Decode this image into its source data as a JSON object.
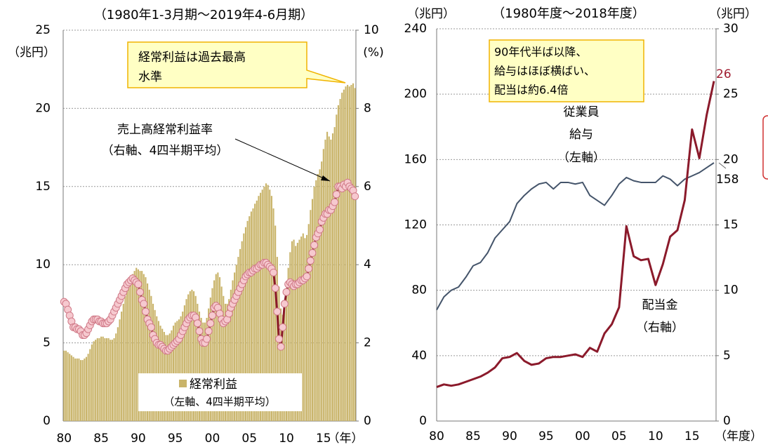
{
  "chart_data": [
    {
      "type": "combo",
      "title": "（1980年1-3月期～2019年4-6月期）",
      "y_unit": "（兆円）",
      "y2_unit": "(%)",
      "x_unit": "（年）",
      "callout": [
        "経常利益は過去最高",
        "水準"
      ],
      "categories": [
        "80",
        null,
        null,
        null,
        null,
        null,
        null,
        null,
        null,
        null,
        null,
        null,
        null,
        null,
        null,
        null,
        null,
        null,
        null,
        null,
        "85",
        null,
        null,
        null,
        null,
        null,
        null,
        null,
        null,
        null,
        null,
        null,
        null,
        null,
        null,
        null,
        null,
        null,
        null,
        null,
        "90",
        null,
        null,
        null,
        null,
        null,
        null,
        null,
        null,
        null,
        null,
        null,
        null,
        null,
        null,
        null,
        null,
        null,
        null,
        null,
        "95",
        null,
        null,
        null,
        null,
        null,
        null,
        null,
        null,
        null,
        null,
        null,
        null,
        null,
        null,
        null,
        null,
        null,
        null,
        null,
        "00",
        null,
        null,
        null,
        null,
        null,
        null,
        null,
        null,
        null,
        null,
        null,
        null,
        null,
        null,
        null,
        null,
        null,
        null,
        null,
        "05",
        null,
        null,
        null,
        null,
        null,
        null,
        null,
        null,
        null,
        null,
        null,
        null,
        null,
        null,
        null,
        null,
        null,
        null,
        null,
        "10",
        null,
        null,
        null,
        null,
        null,
        null,
        null,
        null,
        null,
        null,
        null,
        null,
        null,
        null,
        null,
        null,
        null,
        null,
        null,
        "15",
        null,
        null,
        null,
        null,
        null,
        null,
        null,
        null,
        null,
        null,
        null,
        null,
        null,
        null,
        null,
        null,
        null
      ],
      "ylim": [
        0,
        25
      ],
      "yticks": [
        0,
        5,
        10,
        15,
        20,
        25
      ],
      "y2lim": [
        0,
        10
      ],
      "y2ticks": [
        0,
        2,
        4,
        6,
        8,
        10
      ],
      "grid": true,
      "series": [
        {
          "type": "bar",
          "label": [
            "経常利益",
            "（左軸、4四半期平均）"
          ],
          "color": "#c9b46a",
          "values": [
            4.5,
            4.5,
            4.4,
            4.3,
            4.2,
            4.1,
            4.0,
            4.0,
            4.0,
            3.9,
            3.9,
            4.0,
            4.1,
            4.3,
            4.6,
            4.9,
            5.1,
            5.2,
            5.3,
            5.3,
            5.4,
            5.4,
            5.3,
            5.3,
            5.3,
            5.2,
            5.2,
            5.3,
            5.6,
            6.0,
            6.5,
            7.0,
            7.5,
            8.0,
            8.4,
            8.7,
            9.0,
            9.4,
            9.6,
            9.8,
            9.7,
            9.6,
            9.6,
            9.4,
            9.2,
            8.8,
            8.4,
            8.0,
            7.5,
            7.1,
            6.7,
            6.4,
            6.1,
            5.9,
            5.7,
            5.5,
            5.5,
            5.6,
            5.8,
            6.1,
            6.3,
            6.4,
            6.5,
            6.7,
            7.0,
            7.4,
            7.8,
            8.1,
            8.3,
            8.4,
            8.3,
            8.0,
            7.5,
            7.0,
            6.6,
            6.3,
            6.3,
            6.6,
            7.2,
            7.9,
            8.5,
            9.0,
            9.4,
            9.5,
            9.2,
            8.6,
            8.0,
            7.5,
            7.5,
            7.8,
            8.4,
            9.0,
            9.5,
            10.0,
            10.5,
            11.0,
            11.5,
            12.0,
            12.4,
            12.8,
            13.1,
            13.4,
            13.6,
            13.9,
            14.1,
            14.4,
            14.6,
            14.8,
            15.0,
            15.2,
            15.1,
            14.8,
            14.4,
            13.6,
            12.5,
            10.5,
            8.6,
            7.2,
            6.8,
            7.3,
            8.5,
            9.8,
            10.8,
            11.5,
            11.6,
            11.2,
            11.4,
            11.6,
            11.8,
            12.0,
            11.7,
            11.9,
            12.6,
            13.5,
            14.2,
            15.0,
            15.4,
            15.8,
            16.1,
            16.6,
            17.4,
            18.0,
            18.5,
            18.2,
            18.0,
            18.4,
            18.8,
            19.6,
            20.2,
            20.6,
            21.0,
            21.2,
            21.4,
            21.5,
            21.4,
            21.5,
            21.6,
            21.3
          ]
        },
        {
          "type": "line",
          "axis": "y2",
          "markers": true,
          "label": [
            "売上高経常利益率",
            "（右軸、4四半期平均）"
          ],
          "color": "#8b1a2b",
          "marker_color": "#f6c9cf",
          "values": [
            3.05,
            3.0,
            2.85,
            2.7,
            2.55,
            2.4,
            2.4,
            2.35,
            2.35,
            2.3,
            2.2,
            2.2,
            2.25,
            2.35,
            2.45,
            2.55,
            2.6,
            2.6,
            2.6,
            2.55,
            2.55,
            2.5,
            2.5,
            2.5,
            2.55,
            2.6,
            2.7,
            2.8,
            2.9,
            3.0,
            3.1,
            3.2,
            3.3,
            3.4,
            3.5,
            3.55,
            3.6,
            3.65,
            3.6,
            3.55,
            3.5,
            3.3,
            3.1,
            3.0,
            2.8,
            2.6,
            2.5,
            2.4,
            2.2,
            2.1,
            2.0,
            1.95,
            1.95,
            1.9,
            1.85,
            1.8,
            1.8,
            1.85,
            1.9,
            1.95,
            2.0,
            2.05,
            2.1,
            2.2,
            2.3,
            2.4,
            2.5,
            2.6,
            2.65,
            2.7,
            2.7,
            2.65,
            2.5,
            2.3,
            2.1,
            2.0,
            2.0,
            2.1,
            2.3,
            2.5,
            2.7,
            2.9,
            2.95,
            2.9,
            2.75,
            2.6,
            2.5,
            2.55,
            2.6,
            2.75,
            2.9,
            3.0,
            3.1,
            3.2,
            3.3,
            3.4,
            3.5,
            3.6,
            3.7,
            3.75,
            3.8,
            3.8,
            3.85,
            3.9,
            3.9,
            3.95,
            4.0,
            4.0,
            4.05,
            4.05,
            4.0,
            3.95,
            3.9,
            3.8,
            3.4,
            2.8,
            2.1,
            1.9,
            2.4,
            3.0,
            3.3,
            3.5,
            3.55,
            3.5,
            3.45,
            3.5,
            3.5,
            3.55,
            3.6,
            3.6,
            3.65,
            3.7,
            3.9,
            4.1,
            4.3,
            4.5,
            4.7,
            4.8,
            4.9,
            5.1,
            5.2,
            5.3,
            5.3,
            5.4,
            5.4,
            5.5,
            5.6,
            5.8,
            6.0,
            6.0,
            5.95,
            6.05,
            6.0,
            6.1,
            6.0,
            5.95,
            5.9,
            5.75
          ]
        }
      ]
    },
    {
      "type": "line",
      "title": "（1980年度～2018年度）",
      "y_unit": "（兆円）",
      "y2_unit": "（兆円）",
      "x_unit": "（年度）",
      "callout": [
        "90年代半ば以降、",
        "給与はほぼ横ばい、",
        "配当は約6.4倍"
      ],
      "categories": [
        "80",
        null,
        null,
        null,
        null,
        "85",
        null,
        null,
        null,
        null,
        "90",
        null,
        null,
        null,
        null,
        "95",
        null,
        null,
        null,
        null,
        "00",
        null,
        null,
        null,
        null,
        "05",
        null,
        null,
        null,
        null,
        "10",
        null,
        null,
        null,
        null,
        "15",
        null,
        null,
        null
      ],
      "ylim": [
        0,
        240
      ],
      "yticks": [
        0,
        40,
        80,
        120,
        160,
        200,
        240
      ],
      "y2lim": [
        0,
        30
      ],
      "y2ticks": [
        0,
        5,
        10,
        15,
        20,
        25,
        30
      ],
      "grid": true,
      "series": [
        {
          "label": [
            "従業員",
            "給与",
            "（左軸）"
          ],
          "color": "#44546a",
          "values": [
            68,
            76,
            80,
            82,
            88,
            95,
            97,
            103,
            112,
            117,
            122,
            133,
            138,
            142,
            145,
            146,
            142,
            146,
            146,
            145,
            146,
            138,
            135,
            132,
            138,
            145,
            149,
            147,
            146,
            146,
            146,
            150,
            148,
            144,
            148,
            150,
            152,
            155,
            158
          ]
        },
        {
          "label": [
            "配当金",
            "（右軸）"
          ],
          "axis": "y2",
          "color": "#8b1a2b",
          "values": [
            2.6,
            2.8,
            2.7,
            2.8,
            3.0,
            3.2,
            3.4,
            3.7,
            4.1,
            4.8,
            4.9,
            5.2,
            4.6,
            4.3,
            4.4,
            4.8,
            4.9,
            4.9,
            5.0,
            5.1,
            4.9,
            5.6,
            5.3,
            6.7,
            7.4,
            8.7,
            14.9,
            12.6,
            12.3,
            12.4,
            10.4,
            12.0,
            14.1,
            14.6,
            16.9,
            22.3,
            20.1,
            23.4,
            26
          ]
        }
      ]
    }
  ]
}
